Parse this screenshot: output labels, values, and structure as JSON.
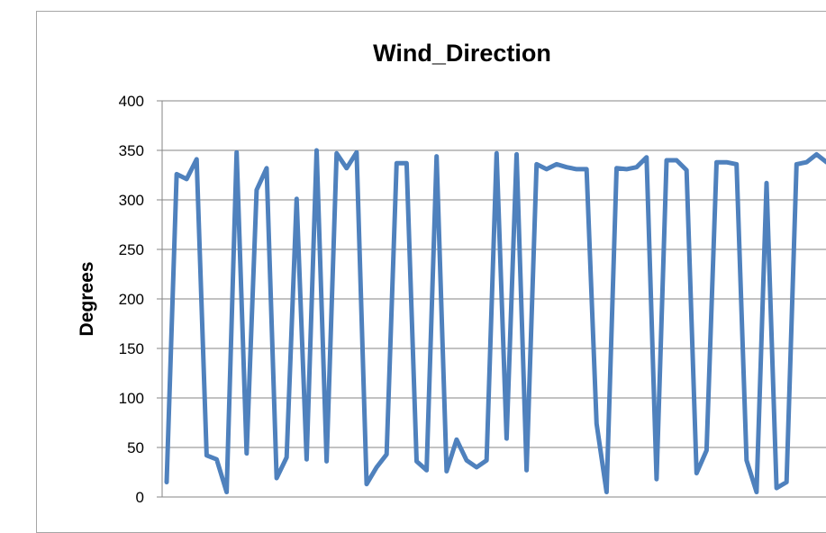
{
  "chart_data": {
    "type": "line",
    "title": "Wind_Direction",
    "xlabel": "",
    "ylabel": "Degrees",
    "ylim": [
      0,
      400
    ],
    "yticks": [
      0,
      50,
      100,
      150,
      200,
      250,
      300,
      350,
      400
    ],
    "grid": true,
    "legend": "none",
    "series": [
      {
        "color": "#4f81bd",
        "values": [
          15,
          326,
          321,
          341,
          42,
          38,
          5,
          348,
          44,
          310,
          332,
          19,
          40,
          301,
          38,
          350,
          36,
          347,
          332,
          348,
          13,
          30,
          43,
          337,
          337,
          36,
          27,
          344,
          26,
          58,
          37,
          30,
          37,
          347,
          59,
          346,
          27,
          336,
          331,
          336,
          333,
          331,
          331,
          74,
          5,
          332,
          331,
          333,
          343,
          18,
          340,
          340,
          330,
          24,
          47,
          338,
          338,
          336,
          37,
          5,
          317,
          9,
          15,
          336,
          338,
          346,
          338
        ]
      }
    ]
  }
}
